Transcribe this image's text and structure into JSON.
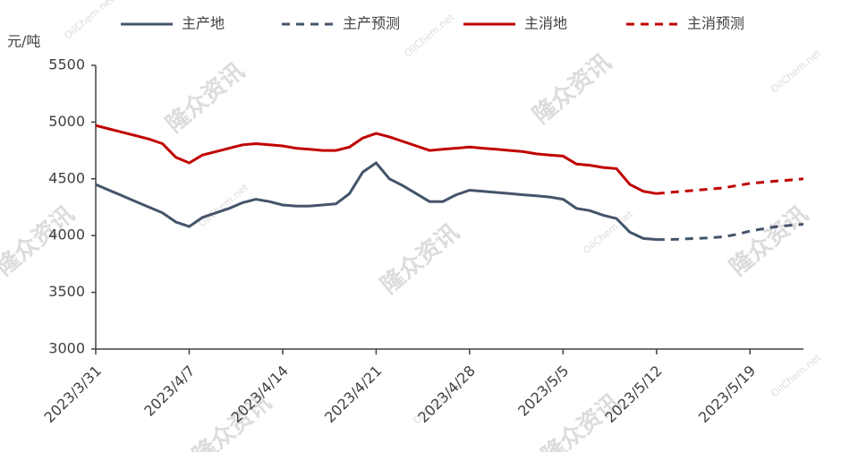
{
  "chart_data": {
    "type": "line",
    "y_label": "元/吨",
    "watermark": "隆众资讯",
    "watermark_site": "OilChem.net",
    "categories": [
      "2023/3/31",
      null,
      null,
      null,
      null,
      null,
      null,
      "2023/4/7",
      null,
      null,
      null,
      null,
      null,
      null,
      "2023/4/14",
      null,
      null,
      null,
      null,
      null,
      null,
      "2023/4/21",
      null,
      null,
      null,
      null,
      null,
      null,
      "2023/4/28",
      null,
      null,
      null,
      null,
      null,
      null,
      "2023/5/5",
      null,
      null,
      null,
      null,
      null,
      null,
      "2023/5/12",
      null,
      null,
      null,
      null,
      null,
      null,
      "2023/5/19",
      null,
      null,
      null,
      null
    ],
    "series": [
      {
        "name": "主产地",
        "color": "#44546a",
        "dash": false,
        "values": [
          4450,
          4400,
          4350,
          4300,
          4250,
          4200,
          4120,
          4080,
          4160,
          4200,
          4240,
          4290,
          4320,
          4300,
          4270,
          4260,
          4260,
          4270,
          4280,
          4370,
          4560,
          4640,
          4500,
          4440,
          4370,
          4300,
          4300,
          4360,
          4400,
          4390,
          4380,
          4370,
          4360,
          4350,
          4340,
          4320,
          4240,
          4220,
          4180,
          4150,
          4030,
          3975,
          3965,
          null,
          null,
          null,
          null,
          null,
          null,
          null,
          null,
          null,
          null,
          null
        ]
      },
      {
        "name": "主产预测",
        "color": "#44546a",
        "dash": true,
        "values": [
          null,
          null,
          null,
          null,
          null,
          null,
          null,
          null,
          null,
          null,
          null,
          null,
          null,
          null,
          null,
          null,
          null,
          null,
          null,
          null,
          null,
          null,
          null,
          null,
          null,
          null,
          null,
          null,
          null,
          null,
          null,
          null,
          null,
          null,
          null,
          null,
          null,
          null,
          null,
          null,
          null,
          null,
          3965,
          3965,
          3970,
          3975,
          3980,
          3990,
          4010,
          4040,
          4060,
          4080,
          4090,
          4100
        ]
      },
      {
        "name": "主消地",
        "color": "#c00000",
        "dash": false,
        "values": [
          4970,
          4940,
          4910,
          4880,
          4850,
          4810,
          4690,
          4640,
          4710,
          4740,
          4770,
          4800,
          4810,
          4800,
          4790,
          4770,
          4760,
          4750,
          4750,
          4780,
          4860,
          4900,
          4870,
          4830,
          4790,
          4750,
          4760,
          4770,
          4780,
          4770,
          4760,
          4750,
          4740,
          4720,
          4710,
          4700,
          4630,
          4620,
          4600,
          4590,
          4450,
          4390,
          4370,
          null,
          null,
          null,
          null,
          null,
          null,
          null,
          null,
          null,
          null,
          null
        ]
      },
      {
        "name": "主消预测",
        "color": "#c00000",
        "dash": true,
        "values": [
          null,
          null,
          null,
          null,
          null,
          null,
          null,
          null,
          null,
          null,
          null,
          null,
          null,
          null,
          null,
          null,
          null,
          null,
          null,
          null,
          null,
          null,
          null,
          null,
          null,
          null,
          null,
          null,
          null,
          null,
          null,
          null,
          null,
          null,
          null,
          null,
          null,
          null,
          null,
          null,
          null,
          null,
          4370,
          4380,
          4390,
          4400,
          4410,
          4420,
          4440,
          4460,
          4470,
          4480,
          4490,
          4500
        ]
      }
    ],
    "ylim": [
      3000,
      5500
    ],
    "yticks": [
      3000,
      3500,
      4000,
      4500,
      5000,
      5500
    ],
    "grid": false
  }
}
